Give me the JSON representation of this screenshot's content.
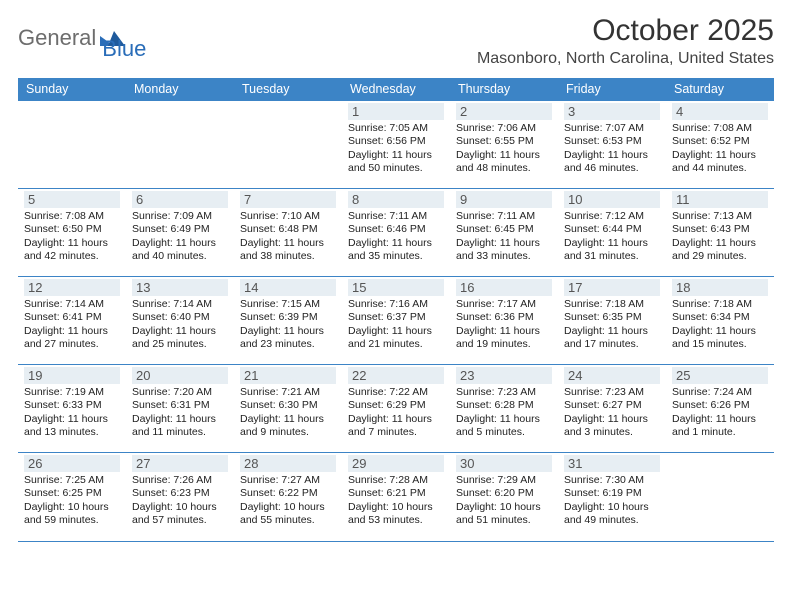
{
  "logo": {
    "text1": "General",
    "text2": "Blue"
  },
  "title": "October 2025",
  "location": "Masonboro, North Carolina, United States",
  "colors": {
    "header_bg": "#3c84c6",
    "header_text": "#ffffff",
    "daynum_bg": "#e7eef3",
    "rule": "#3c84c6",
    "logo_gray": "#6d6d6d",
    "logo_blue": "#2a6db8"
  },
  "dayNames": [
    "Sunday",
    "Monday",
    "Tuesday",
    "Wednesday",
    "Thursday",
    "Friday",
    "Saturday"
  ],
  "weeks": [
    [
      {
        "n": "",
        "sr": "",
        "ss": "",
        "dl": "",
        "empty": true
      },
      {
        "n": "",
        "sr": "",
        "ss": "",
        "dl": "",
        "empty": true
      },
      {
        "n": "",
        "sr": "",
        "ss": "",
        "dl": "",
        "empty": true
      },
      {
        "n": "1",
        "sr": "Sunrise: 7:05 AM",
        "ss": "Sunset: 6:56 PM",
        "dl": "Daylight: 11 hours and 50 minutes."
      },
      {
        "n": "2",
        "sr": "Sunrise: 7:06 AM",
        "ss": "Sunset: 6:55 PM",
        "dl": "Daylight: 11 hours and 48 minutes."
      },
      {
        "n": "3",
        "sr": "Sunrise: 7:07 AM",
        "ss": "Sunset: 6:53 PM",
        "dl": "Daylight: 11 hours and 46 minutes."
      },
      {
        "n": "4",
        "sr": "Sunrise: 7:08 AM",
        "ss": "Sunset: 6:52 PM",
        "dl": "Daylight: 11 hours and 44 minutes."
      }
    ],
    [
      {
        "n": "5",
        "sr": "Sunrise: 7:08 AM",
        "ss": "Sunset: 6:50 PM",
        "dl": "Daylight: 11 hours and 42 minutes."
      },
      {
        "n": "6",
        "sr": "Sunrise: 7:09 AM",
        "ss": "Sunset: 6:49 PM",
        "dl": "Daylight: 11 hours and 40 minutes."
      },
      {
        "n": "7",
        "sr": "Sunrise: 7:10 AM",
        "ss": "Sunset: 6:48 PM",
        "dl": "Daylight: 11 hours and 38 minutes."
      },
      {
        "n": "8",
        "sr": "Sunrise: 7:11 AM",
        "ss": "Sunset: 6:46 PM",
        "dl": "Daylight: 11 hours and 35 minutes."
      },
      {
        "n": "9",
        "sr": "Sunrise: 7:11 AM",
        "ss": "Sunset: 6:45 PM",
        "dl": "Daylight: 11 hours and 33 minutes."
      },
      {
        "n": "10",
        "sr": "Sunrise: 7:12 AM",
        "ss": "Sunset: 6:44 PM",
        "dl": "Daylight: 11 hours and 31 minutes."
      },
      {
        "n": "11",
        "sr": "Sunrise: 7:13 AM",
        "ss": "Sunset: 6:43 PM",
        "dl": "Daylight: 11 hours and 29 minutes."
      }
    ],
    [
      {
        "n": "12",
        "sr": "Sunrise: 7:14 AM",
        "ss": "Sunset: 6:41 PM",
        "dl": "Daylight: 11 hours and 27 minutes."
      },
      {
        "n": "13",
        "sr": "Sunrise: 7:14 AM",
        "ss": "Sunset: 6:40 PM",
        "dl": "Daylight: 11 hours and 25 minutes."
      },
      {
        "n": "14",
        "sr": "Sunrise: 7:15 AM",
        "ss": "Sunset: 6:39 PM",
        "dl": "Daylight: 11 hours and 23 minutes."
      },
      {
        "n": "15",
        "sr": "Sunrise: 7:16 AM",
        "ss": "Sunset: 6:37 PM",
        "dl": "Daylight: 11 hours and 21 minutes."
      },
      {
        "n": "16",
        "sr": "Sunrise: 7:17 AM",
        "ss": "Sunset: 6:36 PM",
        "dl": "Daylight: 11 hours and 19 minutes."
      },
      {
        "n": "17",
        "sr": "Sunrise: 7:18 AM",
        "ss": "Sunset: 6:35 PM",
        "dl": "Daylight: 11 hours and 17 minutes."
      },
      {
        "n": "18",
        "sr": "Sunrise: 7:18 AM",
        "ss": "Sunset: 6:34 PM",
        "dl": "Daylight: 11 hours and 15 minutes."
      }
    ],
    [
      {
        "n": "19",
        "sr": "Sunrise: 7:19 AM",
        "ss": "Sunset: 6:33 PM",
        "dl": "Daylight: 11 hours and 13 minutes."
      },
      {
        "n": "20",
        "sr": "Sunrise: 7:20 AM",
        "ss": "Sunset: 6:31 PM",
        "dl": "Daylight: 11 hours and 11 minutes."
      },
      {
        "n": "21",
        "sr": "Sunrise: 7:21 AM",
        "ss": "Sunset: 6:30 PM",
        "dl": "Daylight: 11 hours and 9 minutes."
      },
      {
        "n": "22",
        "sr": "Sunrise: 7:22 AM",
        "ss": "Sunset: 6:29 PM",
        "dl": "Daylight: 11 hours and 7 minutes."
      },
      {
        "n": "23",
        "sr": "Sunrise: 7:23 AM",
        "ss": "Sunset: 6:28 PM",
        "dl": "Daylight: 11 hours and 5 minutes."
      },
      {
        "n": "24",
        "sr": "Sunrise: 7:23 AM",
        "ss": "Sunset: 6:27 PM",
        "dl": "Daylight: 11 hours and 3 minutes."
      },
      {
        "n": "25",
        "sr": "Sunrise: 7:24 AM",
        "ss": "Sunset: 6:26 PM",
        "dl": "Daylight: 11 hours and 1 minute."
      }
    ],
    [
      {
        "n": "26",
        "sr": "Sunrise: 7:25 AM",
        "ss": "Sunset: 6:25 PM",
        "dl": "Daylight: 10 hours and 59 minutes."
      },
      {
        "n": "27",
        "sr": "Sunrise: 7:26 AM",
        "ss": "Sunset: 6:23 PM",
        "dl": "Daylight: 10 hours and 57 minutes."
      },
      {
        "n": "28",
        "sr": "Sunrise: 7:27 AM",
        "ss": "Sunset: 6:22 PM",
        "dl": "Daylight: 10 hours and 55 minutes."
      },
      {
        "n": "29",
        "sr": "Sunrise: 7:28 AM",
        "ss": "Sunset: 6:21 PM",
        "dl": "Daylight: 10 hours and 53 minutes."
      },
      {
        "n": "30",
        "sr": "Sunrise: 7:29 AM",
        "ss": "Sunset: 6:20 PM",
        "dl": "Daylight: 10 hours and 51 minutes."
      },
      {
        "n": "31",
        "sr": "Sunrise: 7:30 AM",
        "ss": "Sunset: 6:19 PM",
        "dl": "Daylight: 10 hours and 49 minutes."
      },
      {
        "n": "",
        "sr": "",
        "ss": "",
        "dl": "",
        "empty": true
      }
    ]
  ]
}
